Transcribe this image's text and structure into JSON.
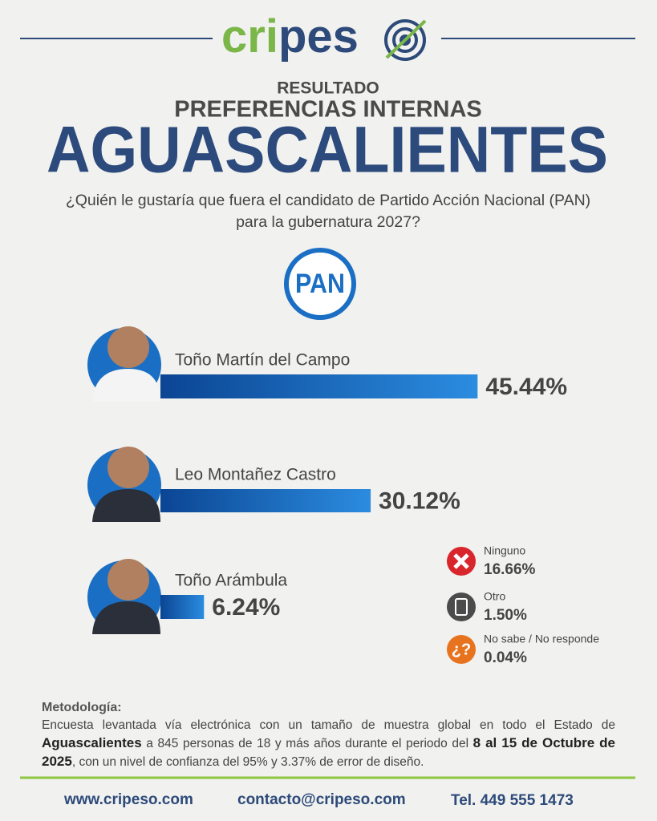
{
  "logo": {
    "green": "cri",
    "blue": "pes"
  },
  "chart_data": {
    "type": "bar",
    "kicker": "RESULTADO",
    "supertitle": "PREFERENCIAS INTERNAS",
    "title": "AGUASCALIENTES",
    "subtitle": [
      "¿Quién le gustaría que fuera el candidato de Partido Acción Nacional (PAN)",
      "para la gubernatura 2027?"
    ],
    "party": "PAN",
    "categories": [
      "Toño Martín del Campo",
      "Leo Montañez Castro",
      "Toño Arámbula"
    ],
    "values": [
      45.44,
      30.12,
      6.24
    ],
    "value_labels": [
      "45.44%",
      "30.12%",
      "6.24%"
    ],
    "color": "#1a6fc4",
    "others": [
      {
        "name": "Ninguno",
        "value": 16.66,
        "value_label": "16.66%",
        "color": "#d9262c"
      },
      {
        "name": "Otro",
        "value": 1.5,
        "value_label": "1.50%",
        "color": "#4b4b4b"
      },
      {
        "name": "No sabe / No responde",
        "value": 0.04,
        "value_label": "0.04%",
        "color": "#e8731f",
        "icon": "¿?"
      }
    ]
  },
  "methodology": {
    "title": "Metodología:",
    "segments": [
      {
        "text": "Encuesta levantada vía electrónica con un tamaño de muestra global en todo el Estado de ",
        "bold": false
      },
      {
        "text": "Aguascalientes",
        "bold": true
      },
      {
        "text": " a 845 personas de 18 y más años durante el periodo del ",
        "bold": false
      },
      {
        "text": "8 al 15 de Octubre de 2025",
        "bold": true
      },
      {
        "text": ", con un nivel de confianza del 95% y 3.37% de error de diseño.",
        "bold": false
      }
    ]
  },
  "footer": {
    "web": "www.cripeso.com",
    "email": "contacto@cripeso.com",
    "phone": "Tel. 449 555 1473"
  }
}
